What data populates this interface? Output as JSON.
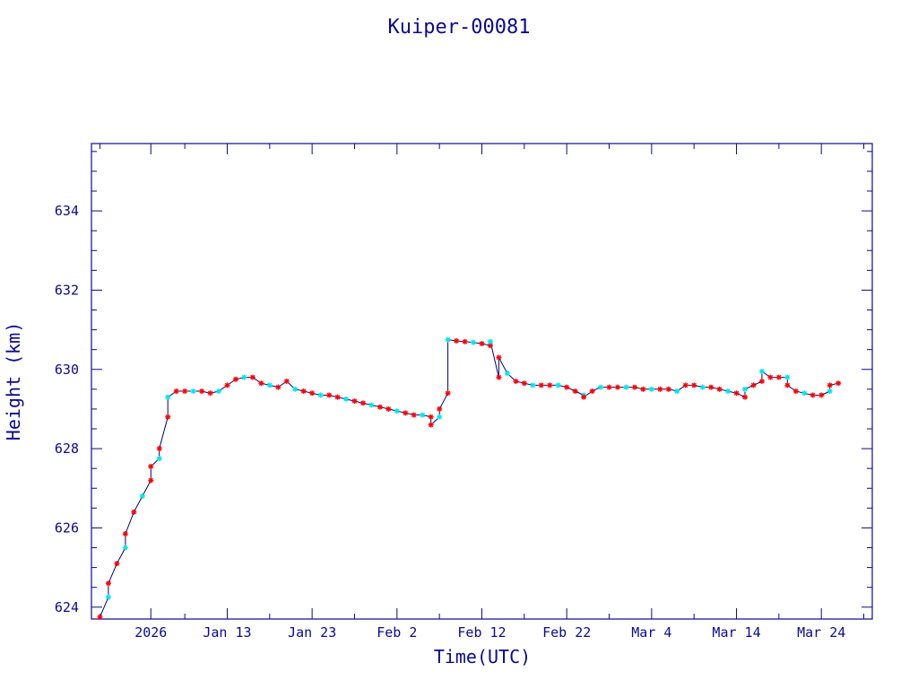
{
  "chart_data": {
    "type": "line",
    "title": "Kuiper-00081",
    "xlabel": "Time(UTC)",
    "ylabel": "Height (km)",
    "x_tick_labels": [
      "2026",
      "Jan 13",
      "Jan 23",
      "Feb  2",
      "Feb 12",
      "Feb 22",
      "Mar  4",
      "Mar 14",
      "Mar 24"
    ],
    "y_tick_labels": [
      "624",
      "626",
      "628",
      "630",
      "632",
      "634"
    ],
    "x_ticks": [
      "2026-01-04",
      "2026-01-13",
      "2026-01-23",
      "2026-02-02",
      "2026-02-12",
      "2026-02-22",
      "2026-03-04",
      "2026-03-14",
      "2026-03-24"
    ],
    "y_ticks": [
      624,
      626,
      628,
      630,
      632,
      634
    ],
    "xlim": [
      "2025-12-28",
      "2026-03-30"
    ],
    "ylim": [
      623.7,
      635.7
    ],
    "grid": false,
    "colors": {
      "axes": "#0a0a8c",
      "line": "#000080",
      "marker_red": "#ff0000",
      "marker_cyan": "#00e5ee",
      "background": "#ffffff"
    },
    "series": [
      {
        "marker": "star",
        "points": [
          [
            "2025-12-29",
            623.75
          ],
          [
            "2025-12-30",
            624.25
          ],
          [
            "2025-12-30",
            624.6
          ],
          [
            "2025-12-31",
            625.1
          ],
          [
            "2026-01-01",
            625.5
          ],
          [
            "2026-01-01",
            625.85
          ],
          [
            "2026-01-02",
            626.4
          ],
          [
            "2026-01-03",
            626.8
          ],
          [
            "2026-01-04",
            627.2
          ],
          [
            "2026-01-04",
            627.55
          ],
          [
            "2026-01-05",
            627.75
          ],
          [
            "2026-01-05",
            628.0
          ],
          [
            "2026-01-06",
            628.8
          ],
          [
            "2026-01-06",
            629.3
          ],
          [
            "2026-01-07",
            629.45
          ],
          [
            "2026-01-08",
            629.45
          ],
          [
            "2026-01-09",
            629.45
          ],
          [
            "2026-01-10",
            629.45
          ],
          [
            "2026-01-11",
            629.4
          ],
          [
            "2026-01-12",
            629.45
          ],
          [
            "2026-01-13",
            629.6
          ],
          [
            "2026-01-14",
            629.75
          ],
          [
            "2026-01-15",
            629.8
          ],
          [
            "2026-01-16",
            629.8
          ],
          [
            "2026-01-17",
            629.65
          ],
          [
            "2026-01-18",
            629.6
          ],
          [
            "2026-01-19",
            629.55
          ],
          [
            "2026-01-20",
            629.7
          ],
          [
            "2026-01-21",
            629.5
          ],
          [
            "2026-01-22",
            629.45
          ],
          [
            "2026-01-23",
            629.4
          ],
          [
            "2026-01-24",
            629.35
          ],
          [
            "2026-01-25",
            629.35
          ],
          [
            "2026-01-26",
            629.3
          ],
          [
            "2026-01-27",
            629.25
          ],
          [
            "2026-01-28",
            629.2
          ],
          [
            "2026-01-29",
            629.15
          ],
          [
            "2026-01-30",
            629.1
          ],
          [
            "2026-01-31",
            629.05
          ],
          [
            "2026-02-01",
            629.0
          ],
          [
            "2026-02-02",
            628.95
          ],
          [
            "2026-02-03",
            628.9
          ],
          [
            "2026-02-04",
            628.85
          ],
          [
            "2026-02-05",
            628.85
          ],
          [
            "2026-02-06",
            628.8
          ],
          [
            "2026-02-06",
            628.6
          ],
          [
            "2026-02-07",
            628.8
          ],
          [
            "2026-02-07",
            629.0
          ],
          [
            "2026-02-08",
            629.4
          ],
          [
            "2026-02-08",
            630.75
          ],
          [
            "2026-02-09",
            630.72
          ],
          [
            "2026-02-10",
            630.7
          ],
          [
            "2026-02-11",
            630.68
          ],
          [
            "2026-02-12",
            630.65
          ],
          [
            "2026-02-13",
            630.6
          ],
          [
            "2026-02-13",
            630.7
          ],
          [
            "2026-02-14",
            629.8
          ],
          [
            "2026-02-14",
            630.3
          ],
          [
            "2026-02-15",
            629.9
          ],
          [
            "2026-02-16",
            629.7
          ],
          [
            "2026-02-17",
            629.65
          ],
          [
            "2026-02-18",
            629.6
          ],
          [
            "2026-02-19",
            629.6
          ],
          [
            "2026-02-20",
            629.6
          ],
          [
            "2026-02-21",
            629.6
          ],
          [
            "2026-02-22",
            629.55
          ],
          [
            "2026-02-23",
            629.45
          ],
          [
            "2026-02-24",
            629.35
          ],
          [
            "2026-02-24",
            629.3
          ],
          [
            "2026-02-25",
            629.45
          ],
          [
            "2026-02-26",
            629.55
          ],
          [
            "2026-02-27",
            629.55
          ],
          [
            "2026-02-28",
            629.55
          ],
          [
            "2026-03-01",
            629.55
          ],
          [
            "2026-03-02",
            629.55
          ],
          [
            "2026-03-03",
            629.5
          ],
          [
            "2026-03-04",
            629.5
          ],
          [
            "2026-03-05",
            629.5
          ],
          [
            "2026-03-06",
            629.5
          ],
          [
            "2026-03-07",
            629.45
          ],
          [
            "2026-03-08",
            629.6
          ],
          [
            "2026-03-09",
            629.6
          ],
          [
            "2026-03-10",
            629.55
          ],
          [
            "2026-03-11",
            629.55
          ],
          [
            "2026-03-12",
            629.5
          ],
          [
            "2026-03-13",
            629.45
          ],
          [
            "2026-03-14",
            629.4
          ],
          [
            "2026-03-15",
            629.3
          ],
          [
            "2026-03-15",
            629.5
          ],
          [
            "2026-03-16",
            629.6
          ],
          [
            "2026-03-17",
            629.7
          ],
          [
            "2026-03-17",
            629.95
          ],
          [
            "2026-03-18",
            629.8
          ],
          [
            "2026-03-19",
            629.8
          ],
          [
            "2026-03-20",
            629.8
          ],
          [
            "2026-03-20",
            629.6
          ],
          [
            "2026-03-21",
            629.45
          ],
          [
            "2026-03-22",
            629.4
          ],
          [
            "2026-03-23",
            629.35
          ],
          [
            "2026-03-24",
            629.35
          ],
          [
            "2026-03-25",
            629.45
          ],
          [
            "2026-03-25",
            629.6
          ],
          [
            "2026-03-26",
            629.65
          ]
        ]
      }
    ]
  }
}
